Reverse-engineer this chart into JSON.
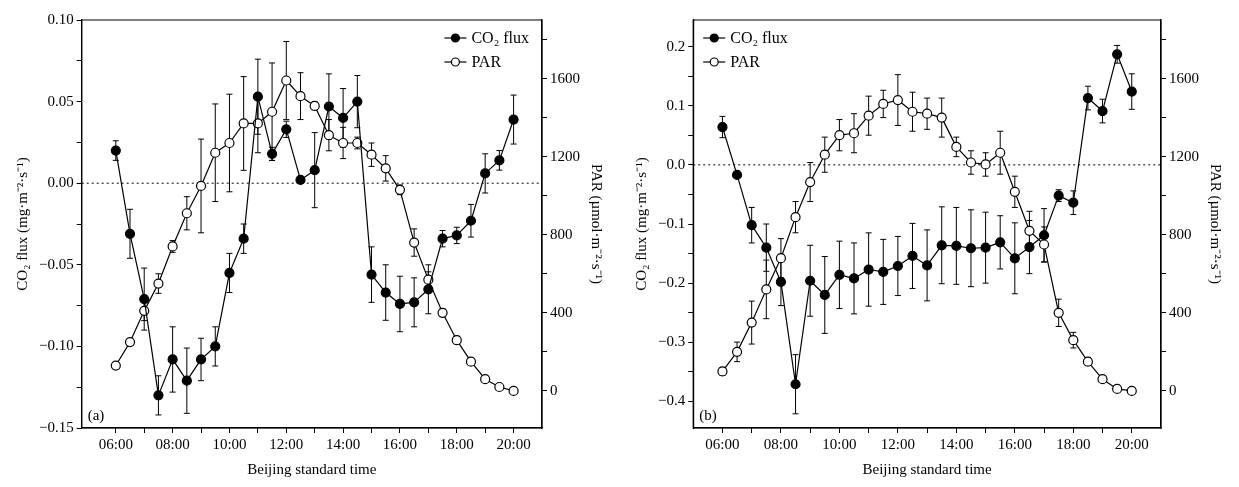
{
  "chart_data": [
    {
      "type": "line",
      "xlabel": "Beijing standard time",
      "ylabel": "CO₂ flux (mg·m⁻²·s⁻¹)",
      "y2label": "PAR (µmol·m⁻²·s⁻¹)",
      "x": [
        6,
        6.5,
        7,
        7.5,
        8,
        8.5,
        9,
        9.5,
        10,
        10.5,
        11,
        11.5,
        12,
        12.5,
        13,
        13.5,
        14,
        14.5,
        15,
        15.5,
        16,
        16.5,
        17,
        17.5,
        18,
        18.5,
        19,
        19.5,
        20
      ],
      "xlim": [
        4.8,
        21
      ],
      "xticks": [
        {
          "value": 6,
          "label": "06:00"
        },
        {
          "value": 7,
          "label": null
        },
        {
          "value": 8,
          "label": "08:00"
        },
        {
          "value": 9,
          "label": null
        },
        {
          "value": 10,
          "label": "10:00"
        },
        {
          "value": 11,
          "label": null
        },
        {
          "value": 12,
          "label": "12:00"
        },
        {
          "value": 13,
          "label": null
        },
        {
          "value": 14,
          "label": "14:00"
        },
        {
          "value": 15,
          "label": null
        },
        {
          "value": 16,
          "label": "16:00"
        },
        {
          "value": 17,
          "label": null
        },
        {
          "value": 18,
          "label": "18:00"
        },
        {
          "value": 19,
          "label": null
        },
        {
          "value": 20,
          "label": "20:00"
        }
      ],
      "ylim": [
        -0.15,
        0.1
      ],
      "yticks": [
        {
          "value": -0.15,
          "label": "−0.15"
        },
        {
          "value": -0.125,
          "label": null
        },
        {
          "value": -0.1,
          "label": "−0.10"
        },
        {
          "value": -0.075,
          "label": null
        },
        {
          "value": -0.05,
          "label": "−0.05"
        },
        {
          "value": -0.025,
          "label": null
        },
        {
          "value": 0,
          "label": "0.00"
        },
        {
          "value": 0.025,
          "label": null
        },
        {
          "value": 0.05,
          "label": "0.05"
        },
        {
          "value": 0.075,
          "label": null
        },
        {
          "value": 0.1,
          "label": "0.10"
        }
      ],
      "y2lim": [
        -190,
        1900
      ],
      "y2ticks": [
        {
          "value": 0,
          "label": "0"
        },
        {
          "value": 200,
          "label": null
        },
        {
          "value": 400,
          "label": "400"
        },
        {
          "value": 600,
          "label": null
        },
        {
          "value": 800,
          "label": "800"
        },
        {
          "value": 1000,
          "label": null
        },
        {
          "value": 1200,
          "label": "1200"
        },
        {
          "value": 1400,
          "label": null
        },
        {
          "value": 1600,
          "label": "1600"
        },
        {
          "value": 1800,
          "label": null
        }
      ],
      "series": [
        {
          "name": "CO₂ flux",
          "color": "#000000",
          "values": [
            0.02,
            -0.031,
            -0.071,
            -0.13,
            -0.108,
            -0.121,
            -0.108,
            -0.1,
            -0.055,
            -0.034,
            0.053,
            0.018,
            0.033,
            0.002,
            0.008,
            0.047,
            0.04,
            0.05,
            -0.056,
            -0.067,
            -0.074,
            -0.073,
            -0.065,
            -0.034,
            -0.032,
            -0.023,
            0.006,
            0.014,
            0.039
          ],
          "errors": [
            0.006,
            0.015,
            0.019,
            0.012,
            0.02,
            0.02,
            0.013,
            0.012,
            0.012,
            0.009,
            0.023,
            0.004,
            0.005,
            null,
            0.023,
            0.02,
            0.018,
            0.016,
            0.017,
            0.017,
            0.017,
            0.015,
            0.015,
            0.005,
            0.005,
            0.01,
            0.012,
            0.006,
            0.015
          ]
        },
        {
          "name": "PAR",
          "color": "#ffffff",
          "axis": "y2",
          "values": [
            130,
            250,
            410,
            550,
            740,
            910,
            1050,
            1220,
            1270,
            1370,
            1370,
            1430,
            1590,
            1510,
            1460,
            1310,
            1270,
            1270,
            1210,
            1140,
            1030,
            760,
            570,
            400,
            260,
            150,
            60,
            20,
            0
          ],
          "errors": [
            null,
            null,
            50,
            50,
            30,
            85,
            240,
            250,
            250,
            240,
            150,
            250,
            200,
            120,
            20,
            80,
            80,
            30,
            60,
            65,
            25,
            70,
            40,
            20,
            20,
            null,
            null,
            null,
            null
          ]
        }
      ],
      "ref_lines": [
        {
          "axis": "y",
          "value": 0,
          "line_style": "dotted"
        }
      ],
      "annotations": [
        "(a)"
      ],
      "legend": "top right",
      "marker": "circle",
      "line_style": "solid",
      "grid": false
    },
    {
      "type": "line",
      "xlabel": "Beijing standard time",
      "ylabel": "CO₂ flux (mg·m⁻²·s⁻¹)",
      "y2label": "PAR (µmol·m⁻²·s⁻¹)",
      "x": [
        6,
        6.5,
        7,
        7.5,
        8,
        8.5,
        9,
        9.5,
        10,
        10.5,
        11,
        11.5,
        12,
        12.5,
        13,
        13.5,
        14,
        14.5,
        15,
        15.5,
        16,
        16.5,
        17,
        17.5,
        18,
        18.5,
        19,
        19.5,
        20
      ],
      "xlim": [
        5,
        21
      ],
      "xticks": [
        {
          "value": 6,
          "label": "06:00"
        },
        {
          "value": 7,
          "label": null
        },
        {
          "value": 8,
          "label": "08:00"
        },
        {
          "value": 9,
          "label": null
        },
        {
          "value": 10,
          "label": "10:00"
        },
        {
          "value": 11,
          "label": null
        },
        {
          "value": 12,
          "label": "12:00"
        },
        {
          "value": 13,
          "label": null
        },
        {
          "value": 14,
          "label": "14:00"
        },
        {
          "value": 15,
          "label": null
        },
        {
          "value": 16,
          "label": "16:00"
        },
        {
          "value": 17,
          "label": null
        },
        {
          "value": 18,
          "label": "18:00"
        },
        {
          "value": 19,
          "label": null
        },
        {
          "value": 20,
          "label": "20:00"
        }
      ],
      "ylim": [
        -0.445,
        0.245
      ],
      "yticks": [
        {
          "value": -0.4,
          "label": "−0.4"
        },
        {
          "value": -0.35,
          "label": null
        },
        {
          "value": -0.3,
          "label": "−0.3"
        },
        {
          "value": -0.25,
          "label": null
        },
        {
          "value": -0.2,
          "label": "−0.2"
        },
        {
          "value": -0.15,
          "label": null
        },
        {
          "value": -0.1,
          "label": "−0.1"
        },
        {
          "value": -0.05,
          "label": null
        },
        {
          "value": 0,
          "label": "0.0"
        },
        {
          "value": 0.05,
          "label": null
        },
        {
          "value": 0.1,
          "label": "0.1"
        },
        {
          "value": 0.15,
          "label": null
        },
        {
          "value": 0.2,
          "label": "0.2"
        }
      ],
      "y2lim": [
        -190,
        1900
      ],
      "y2ticks": [
        {
          "value": 0,
          "label": "0"
        },
        {
          "value": 200,
          "label": null
        },
        {
          "value": 400,
          "label": "400"
        },
        {
          "value": 600,
          "label": null
        },
        {
          "value": 800,
          "label": "800"
        },
        {
          "value": 1000,
          "label": null
        },
        {
          "value": 1200,
          "label": "1200"
        },
        {
          "value": 1400,
          "label": null
        },
        {
          "value": 1600,
          "label": "1600"
        },
        {
          "value": 1800,
          "label": null
        }
      ],
      "series": [
        {
          "name": "CO₂ flux",
          "color": "#000000",
          "values": [
            0.064,
            -0.017,
            -0.102,
            -0.14,
            -0.198,
            -0.371,
            -0.196,
            -0.22,
            -0.186,
            -0.192,
            -0.177,
            -0.181,
            -0.171,
            -0.154,
            -0.17,
            -0.136,
            -0.137,
            -0.141,
            -0.14,
            -0.131,
            -0.158,
            -0.139,
            -0.119,
            -0.052,
            -0.064,
            0.113,
            0.091,
            0.187,
            0.124
          ],
          "errors": [
            0.018,
            null,
            0.03,
            0.04,
            0.04,
            0.05,
            0.06,
            0.065,
            0.057,
            0.06,
            0.062,
            0.055,
            0.05,
            0.055,
            0.06,
            0.065,
            0.065,
            0.065,
            0.06,
            0.045,
            0.06,
            0.045,
            0.045,
            0.01,
            0.02,
            0.02,
            0.02,
            0.015,
            0.03
          ]
        },
        {
          "name": "PAR",
          "color": "#ffffff",
          "axis": "y2",
          "values": [
            100,
            200,
            350,
            520,
            680,
            890,
            1070,
            1210,
            1310,
            1320,
            1410,
            1470,
            1490,
            1430,
            1420,
            1400,
            1250,
            1170,
            1160,
            1220,
            1020,
            820,
            750,
            400,
            260,
            150,
            60,
            10,
            0
          ],
          "errors": [
            20,
            50,
            110,
            150,
            100,
            80,
            100,
            90,
            80,
            100,
            100,
            70,
            130,
            100,
            80,
            100,
            50,
            60,
            60,
            110,
            80,
            100,
            90,
            70,
            40,
            20,
            null,
            null,
            null
          ]
        }
      ],
      "ref_lines": [
        {
          "axis": "y",
          "value": 0,
          "line_style": "dotted"
        }
      ],
      "annotations": [
        "(b)"
      ],
      "legend": "top left",
      "marker": "circle",
      "line_style": "solid",
      "grid": false
    }
  ]
}
